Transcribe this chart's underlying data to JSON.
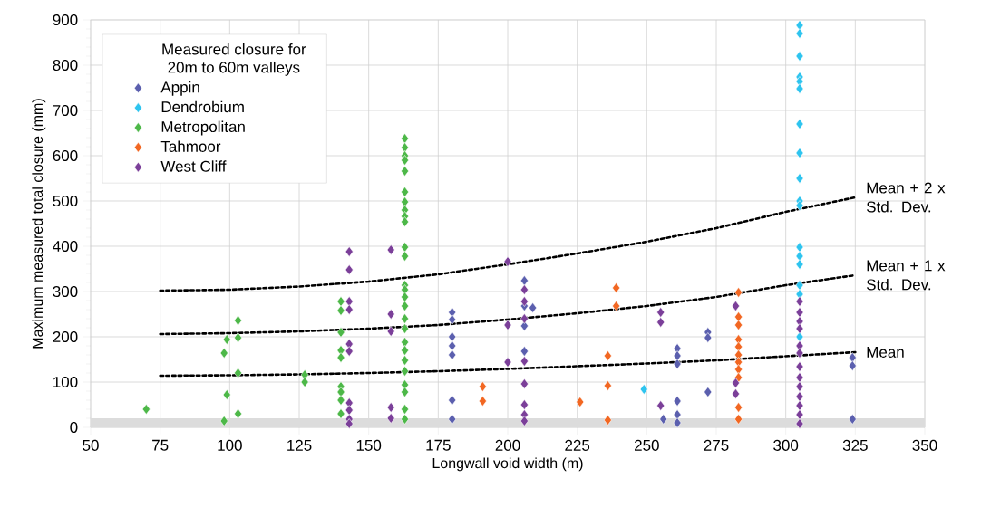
{
  "chart_data": {
    "type": "scatter",
    "xlabel": "Longwall void width (m)",
    "ylabel": "Maximum measured total closure (mm)",
    "legend_title": "Measured closure for 20m to 60m valleys",
    "xlim": [
      50,
      350
    ],
    "xticks": [
      50,
      75,
      100,
      125,
      150,
      175,
      200,
      225,
      250,
      275,
      300,
      325,
      350
    ],
    "ylim": [
      0,
      900
    ],
    "yticks": [
      0,
      100,
      200,
      300,
      400,
      500,
      600,
      700,
      800,
      900
    ],
    "grid": true,
    "legend": "top left",
    "marker": "diamond",
    "bands": [
      {
        "axis": "y",
        "from": 0,
        "to": 20,
        "color": "#dcdcdc"
      }
    ],
    "series": [
      {
        "name": "Appin",
        "color": "#5b5fae",
        "x": [
          180,
          180,
          180,
          180,
          180,
          180,
          180,
          206,
          206,
          206,
          206,
          209,
          256,
          261,
          261,
          261,
          261,
          261,
          261,
          272,
          272,
          272,
          324,
          324,
          324
        ],
        "values": [
          254,
          238,
          200,
          180,
          160,
          60,
          18,
          324,
          268,
          224,
          168,
          264,
          18,
          174,
          158,
          140,
          58,
          28,
          10,
          210,
          198,
          78,
          154,
          136,
          18
        ]
      },
      {
        "name": "Dendrobium",
        "color": "#2ec4ef",
        "x": [
          305,
          305,
          305,
          305,
          305,
          305,
          305,
          305,
          305,
          305,
          305,
          305,
          305,
          305,
          305,
          305,
          305,
          249
        ],
        "values": [
          888,
          870,
          820,
          774,
          764,
          748,
          670,
          606,
          550,
          500,
          490,
          398,
          378,
          360,
          314,
          294,
          200,
          84
        ]
      },
      {
        "name": "Metropolitan",
        "color": "#4db848",
        "x": [
          70,
          98,
          99,
          103,
          98,
          103,
          99,
          103,
          103,
          127,
          127,
          140,
          140,
          140,
          140,
          140,
          140,
          140,
          140,
          140,
          163,
          163,
          163,
          163,
          163,
          163,
          163,
          163,
          163,
          163,
          163,
          163,
          163,
          163,
          163,
          163,
          163,
          163,
          163,
          163,
          163,
          163,
          163,
          163,
          163,
          163
        ],
        "values": [
          40,
          164,
          194,
          236,
          14,
          198,
          72,
          120,
          30,
          116,
          100,
          278,
          258,
          210,
          170,
          154,
          90,
          78,
          60,
          30,
          638,
          618,
          600,
          590,
          566,
          520,
          498,
          480,
          466,
          454,
          398,
          378,
          314,
          304,
          288,
          268,
          240,
          218,
          188,
          170,
          148,
          124,
          94,
          78,
          40,
          18
        ]
      },
      {
        "name": "Tahmoor",
        "color": "#f26722",
        "x": [
          191,
          191,
          226,
          236,
          236,
          236,
          239,
          239,
          283,
          283,
          283,
          283,
          283,
          283,
          283,
          283,
          283,
          283,
          283
        ],
        "values": [
          90,
          58,
          56,
          158,
          92,
          16,
          308,
          268,
          298,
          244,
          226,
          194,
          178,
          160,
          144,
          128,
          110,
          44,
          18
        ]
      },
      {
        "name": "West Cliff",
        "color": "#7b3f99",
        "x": [
          143,
          143,
          143,
          143,
          143,
          143,
          143,
          143,
          143,
          143,
          158,
          158,
          158,
          158,
          158,
          200,
          200,
          200,
          206,
          206,
          206,
          206,
          206,
          206,
          206,
          206,
          255,
          255,
          255,
          282,
          282,
          282,
          305,
          305,
          305,
          305,
          305,
          305,
          305,
          305,
          305,
          305,
          305,
          305,
          305
        ],
        "values": [
          388,
          348,
          278,
          260,
          184,
          168,
          54,
          38,
          18,
          8,
          392,
          250,
          212,
          44,
          20,
          366,
          226,
          144,
          304,
          278,
          240,
          146,
          96,
          50,
          28,
          14,
          254,
          232,
          48,
          268,
          98,
          74,
          278,
          254,
          234,
          218,
          180,
          164,
          134,
          110,
          90,
          68,
          48,
          28,
          8
        ]
      },
      {
        "name": "Mean + 2 x Std. Dev.",
        "type": "line",
        "color": "#000000",
        "line_style": "dotted",
        "marker": "none",
        "x": [
          75,
          100,
          125,
          150,
          175,
          200,
          225,
          250,
          275,
          300,
          325
        ],
        "values": [
          302,
          304,
          311,
          322,
          338,
          360,
          384,
          410,
          440,
          476,
          508
        ]
      },
      {
        "name": "Mean + 1 x Std. Dev.",
        "type": "line",
        "color": "#000000",
        "line_style": "dotted",
        "marker": "none",
        "x": [
          75,
          100,
          125,
          150,
          175,
          200,
          225,
          250,
          275,
          300,
          325
        ],
        "values": [
          206,
          208,
          212,
          218,
          226,
          238,
          252,
          268,
          288,
          314,
          336
        ]
      },
      {
        "name": "Mean",
        "type": "line",
        "color": "#000000",
        "line_style": "dotted",
        "marker": "none",
        "x": [
          75,
          100,
          125,
          150,
          175,
          200,
          225,
          250,
          275,
          300,
          325
        ],
        "values": [
          114,
          115,
          117,
          120,
          124,
          129,
          135,
          141,
          148,
          157,
          166
        ]
      }
    ]
  }
}
